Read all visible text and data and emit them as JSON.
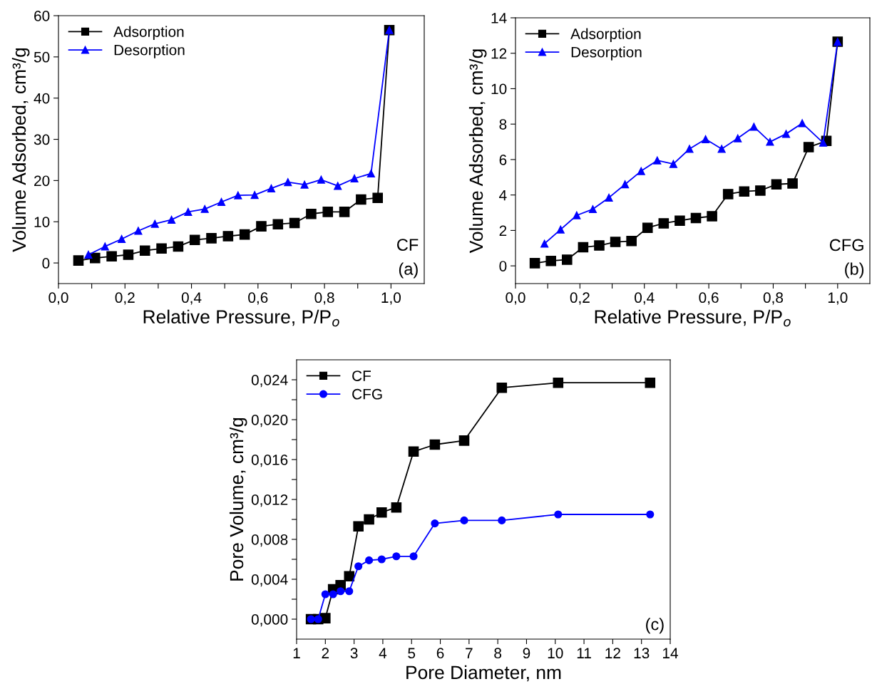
{
  "chart_data": [
    {
      "type": "line",
      "xlabel": "Relative Pressure, P/P$_{o}$",
      "ylabel": "Volume Adsorbed, cm³/g",
      "annotations": [
        "CF",
        "(a)"
      ],
      "legend": "top left",
      "grid": false,
      "xlim": [
        0,
        1.1
      ],
      "ylim": [
        -5,
        60
      ],
      "xticks": [
        {
          "value": 0,
          "label": "0,0"
        },
        {
          "value": 0.1,
          "label": null
        },
        {
          "value": 0.2,
          "label": "0,2"
        },
        {
          "value": 0.3,
          "label": null
        },
        {
          "value": 0.4,
          "label": "0,4"
        },
        {
          "value": 0.5,
          "label": null
        },
        {
          "value": 0.6,
          "label": "0,6"
        },
        {
          "value": 0.7,
          "label": null
        },
        {
          "value": 0.8,
          "label": "0,8"
        },
        {
          "value": 0.9,
          "label": null
        },
        {
          "value": 1.0,
          "label": "1,0"
        }
      ],
      "yticks": [
        0,
        10,
        20,
        30,
        40,
        50,
        60
      ],
      "series": [
        {
          "name": "Adsorption",
          "color": "#000000",
          "marker": "square",
          "x": [
            0.06,
            0.11,
            0.16,
            0.21,
            0.26,
            0.31,
            0.36,
            0.41,
            0.46,
            0.51,
            0.56,
            0.61,
            0.66,
            0.71,
            0.76,
            0.81,
            0.86,
            0.91,
            0.96,
            0.995
          ],
          "values": [
            0.6,
            1.2,
            1.6,
            2.0,
            3.0,
            3.5,
            4.0,
            5.6,
            6.0,
            6.5,
            6.9,
            8.9,
            9.4,
            9.7,
            11.9,
            12.4,
            12.4,
            15.4,
            15.8,
            56.5
          ]
        },
        {
          "name": "Desorption",
          "color": "#0000ff",
          "marker": "triangle",
          "x": [
            0.09,
            0.14,
            0.19,
            0.24,
            0.29,
            0.34,
            0.39,
            0.44,
            0.49,
            0.54,
            0.59,
            0.64,
            0.69,
            0.74,
            0.79,
            0.84,
            0.89,
            0.94,
            0.995
          ],
          "values": [
            2.0,
            4.0,
            5.8,
            7.8,
            9.5,
            10.5,
            12.4,
            13.1,
            14.8,
            16.4,
            16.5,
            18.1,
            19.6,
            19.0,
            20.2,
            18.7,
            20.5,
            21.7,
            56.5
          ]
        }
      ]
    },
    {
      "type": "line",
      "xlabel": "Relative Pressure, P/P$_{o}$",
      "ylabel": "Volume Adsorbed, cm³/g",
      "annotations": [
        "CFG",
        "(b)"
      ],
      "legend": "top left",
      "grid": false,
      "xlim": [
        0,
        1.1
      ],
      "ylim": [
        -1,
        14
      ],
      "xticks": [
        {
          "value": 0,
          "label": "0,0"
        },
        {
          "value": 0.1,
          "label": null
        },
        {
          "value": 0.2,
          "label": "0,2"
        },
        {
          "value": 0.3,
          "label": null
        },
        {
          "value": 0.4,
          "label": "0,4"
        },
        {
          "value": 0.5,
          "label": null
        },
        {
          "value": 0.6,
          "label": "0,6"
        },
        {
          "value": 0.7,
          "label": null
        },
        {
          "value": 0.8,
          "label": "0,8"
        },
        {
          "value": 0.9,
          "label": null
        },
        {
          "value": 1.0,
          "label": "1,0"
        }
      ],
      "yticks": [
        0,
        2,
        4,
        6,
        8,
        10,
        12,
        14
      ],
      "series": [
        {
          "name": "Adsorption",
          "color": "#000000",
          "marker": "square",
          "x": [
            0.06,
            0.11,
            0.16,
            0.21,
            0.26,
            0.31,
            0.36,
            0.41,
            0.46,
            0.51,
            0.56,
            0.61,
            0.66,
            0.71,
            0.76,
            0.81,
            0.86,
            0.91,
            0.965,
            1.0
          ],
          "values": [
            0.15,
            0.28,
            0.35,
            1.05,
            1.15,
            1.35,
            1.4,
            2.15,
            2.4,
            2.55,
            2.7,
            2.8,
            4.05,
            4.2,
            4.25,
            4.6,
            4.65,
            6.7,
            7.05,
            12.65
          ]
        },
        {
          "name": "Desorption",
          "color": "#0000ff",
          "marker": "triangle",
          "x": [
            0.09,
            0.14,
            0.19,
            0.24,
            0.29,
            0.34,
            0.39,
            0.44,
            0.49,
            0.54,
            0.59,
            0.64,
            0.69,
            0.74,
            0.79,
            0.84,
            0.89,
            0.955,
            1.0
          ],
          "values": [
            1.25,
            2.05,
            2.85,
            3.2,
            3.85,
            4.6,
            5.35,
            5.95,
            5.75,
            6.6,
            7.15,
            6.6,
            7.2,
            7.85,
            7.0,
            7.45,
            8.05,
            6.95,
            12.65
          ]
        }
      ]
    },
    {
      "type": "line",
      "xlabel": "Pore Diameter, nm",
      "ylabel": "Pore Volume, cm³/g",
      "annotations": [
        "(c)"
      ],
      "legend": "top left",
      "grid": false,
      "xlim": [
        1,
        14
      ],
      "ylim": [
        -0.002,
        0.026
      ],
      "xticks": [
        1,
        2,
        3,
        4,
        5,
        6,
        7,
        8,
        9,
        10,
        11,
        12,
        13,
        14
      ],
      "yticks": [
        {
          "value": 0,
          "label": "0,000"
        },
        {
          "value": 0.002,
          "label": null
        },
        {
          "value": 0.004,
          "label": "0,004"
        },
        {
          "value": 0.006,
          "label": null
        },
        {
          "value": 0.008,
          "label": "0,008"
        },
        {
          "value": 0.01,
          "label": null
        },
        {
          "value": 0.012,
          "label": "0,012"
        },
        {
          "value": 0.014,
          "label": null
        },
        {
          "value": 0.016,
          "label": "0,016"
        },
        {
          "value": 0.018,
          "label": null
        },
        {
          "value": 0.02,
          "label": "0,020"
        },
        {
          "value": 0.022,
          "label": null
        },
        {
          "value": 0.024,
          "label": "0,024"
        }
      ],
      "series": [
        {
          "name": "CF",
          "color": "#000000",
          "marker": "square",
          "x": [
            1.5,
            1.75,
            2.0,
            2.27,
            2.53,
            2.83,
            3.15,
            3.52,
            3.96,
            4.47,
            5.07,
            5.81,
            6.83,
            8.14,
            10.1,
            13.3
          ],
          "values": [
            0,
            0,
            0.0001,
            0.003,
            0.0034,
            0.0043,
            0.0093,
            0.01,
            0.0107,
            0.0112,
            0.0168,
            0.0175,
            0.0179,
            0.0232,
            0.0237,
            0.0237
          ]
        },
        {
          "name": "CFG",
          "color": "#0000ff",
          "marker": "circle",
          "x": [
            1.5,
            1.75,
            2.0,
            2.27,
            2.53,
            2.83,
            3.15,
            3.52,
            3.96,
            4.47,
            5.07,
            5.81,
            6.83,
            8.14,
            10.1,
            13.3
          ],
          "values": [
            0,
            0,
            0.0025,
            0.0025,
            0.0028,
            0.0028,
            0.0053,
            0.0059,
            0.006,
            0.0063,
            0.0063,
            0.0096,
            0.0099,
            0.0099,
            0.0105,
            0.0105
          ]
        }
      ]
    }
  ]
}
